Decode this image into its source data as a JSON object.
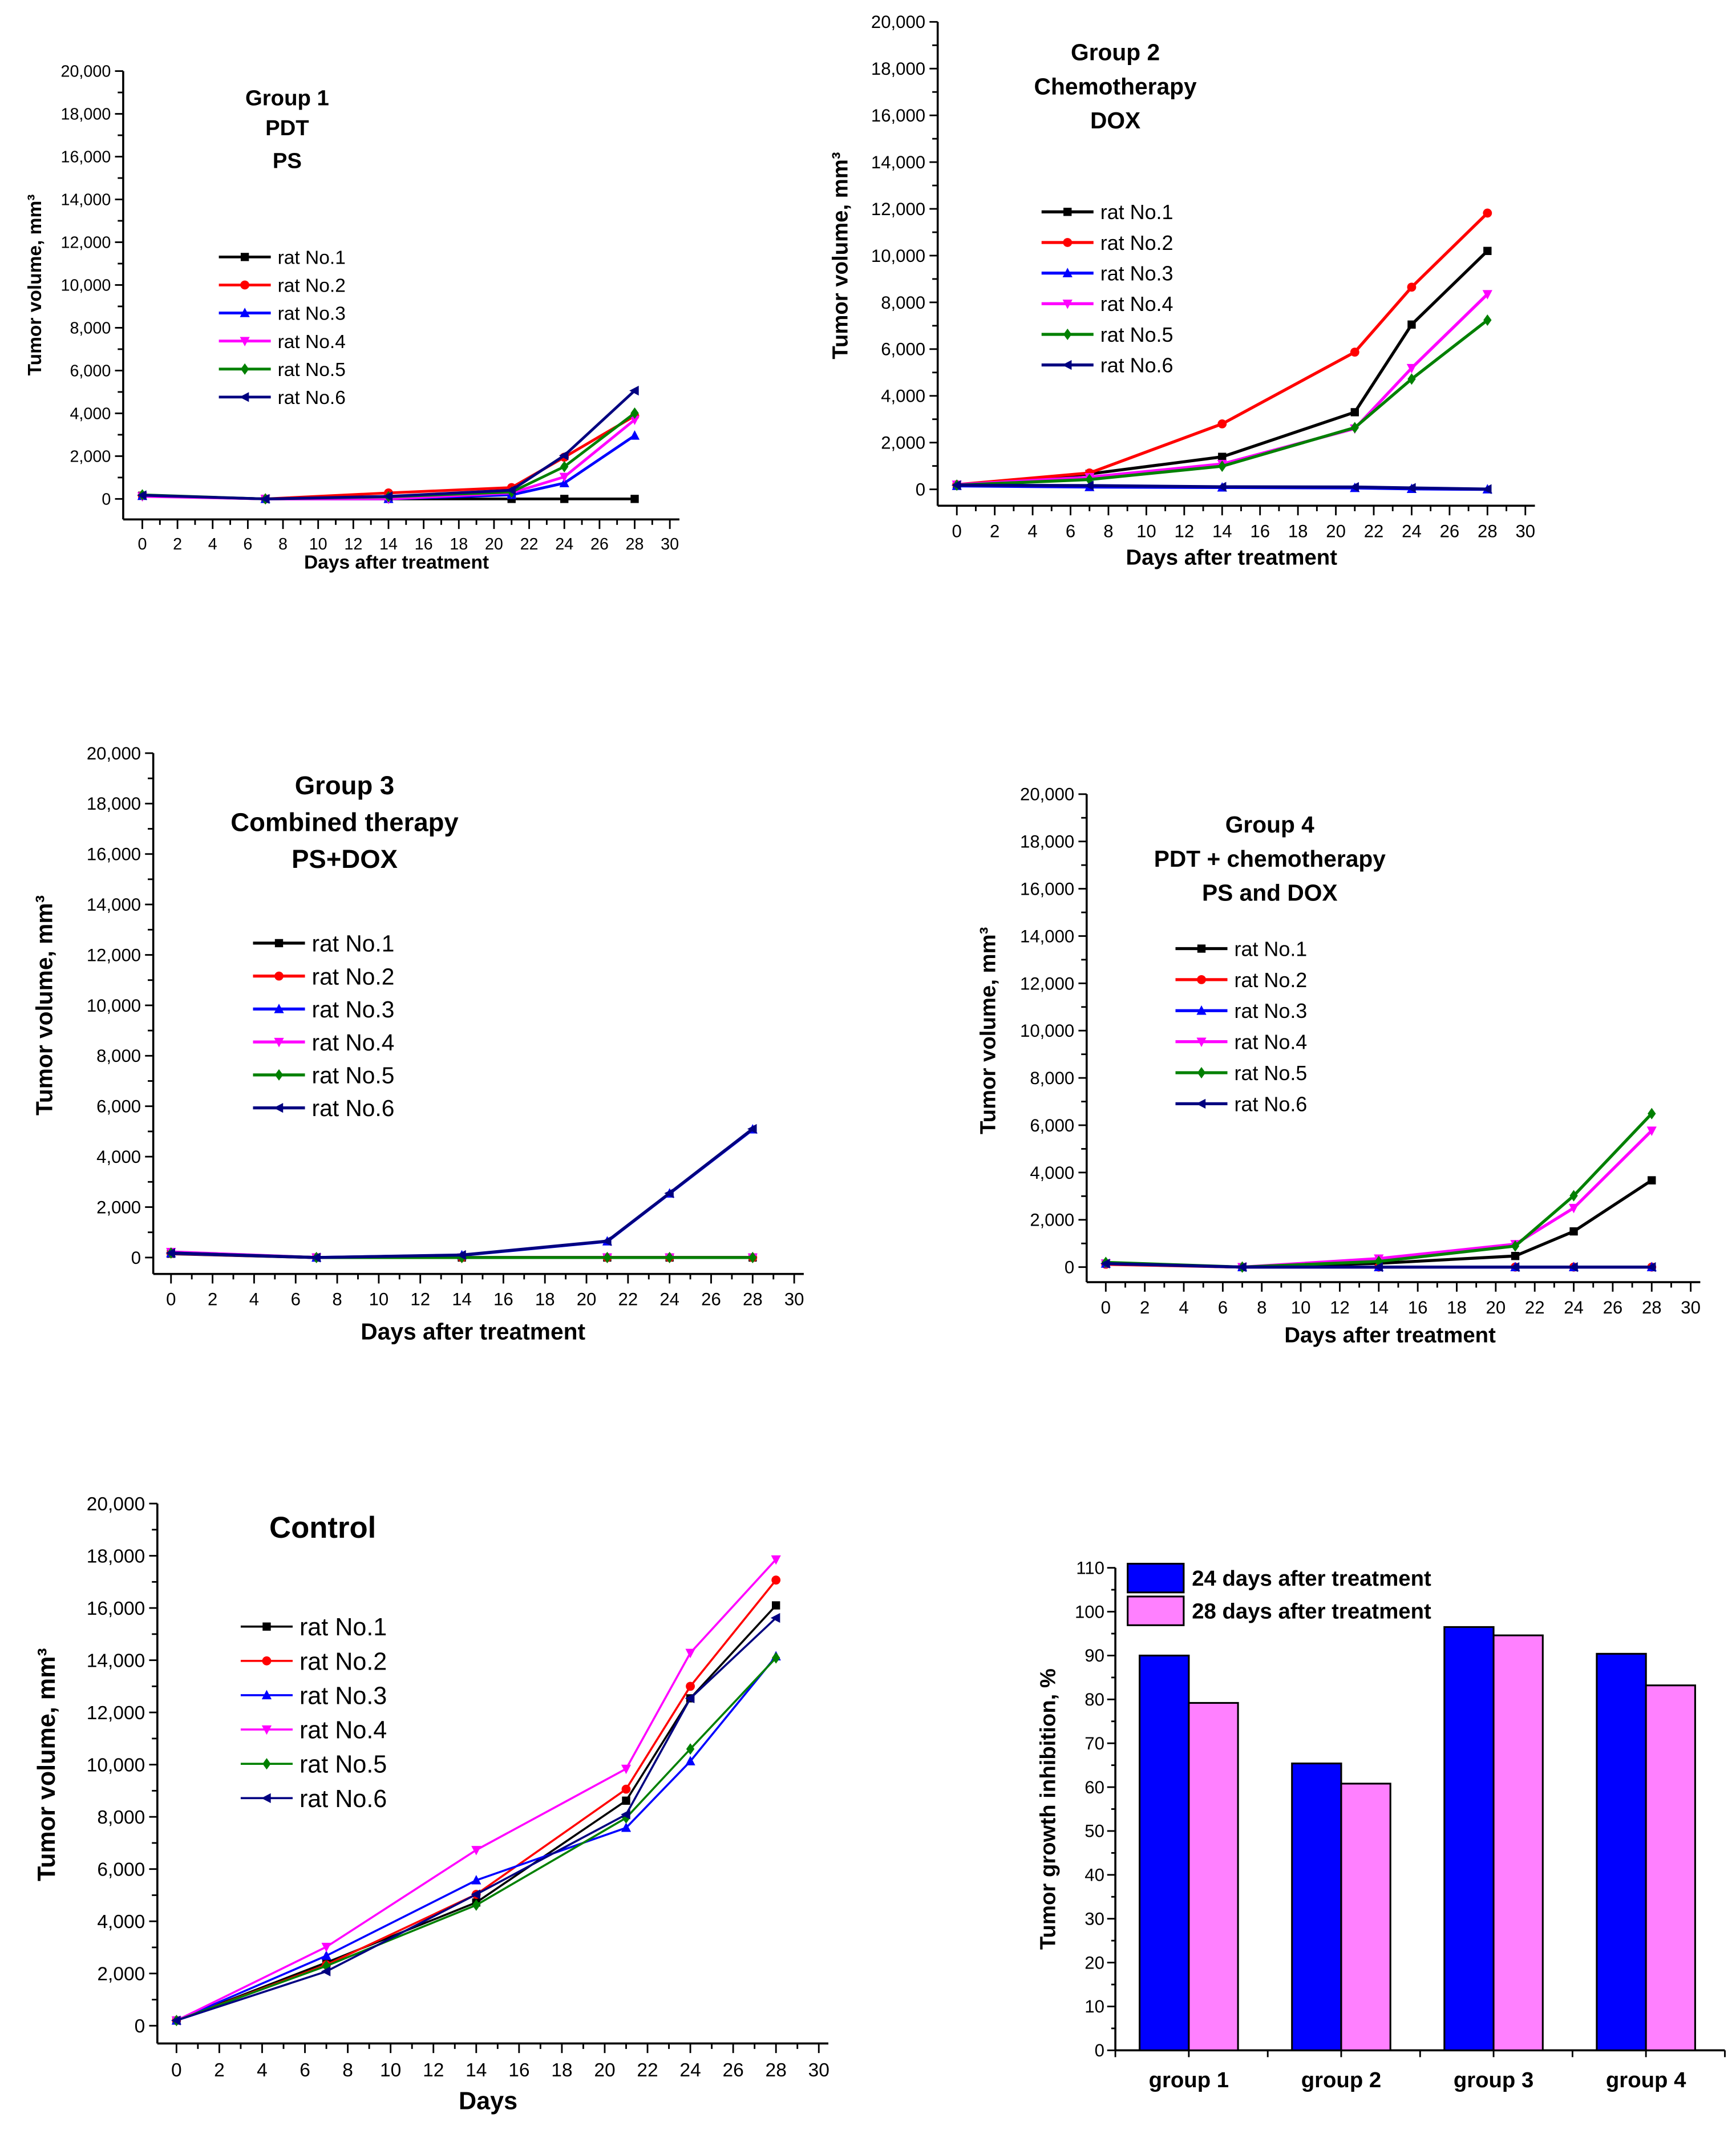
{
  "chart_data": [
    {
      "type": "line",
      "title": [
        "Group 1",
        "PDT",
        "PS"
      ],
      "xlabel": "Days after treatment",
      "ylabel": "Tumor volume, mm³",
      "xlim": [
        0,
        30
      ],
      "ylim": [
        0,
        20000
      ],
      "x": [
        0,
        7,
        14,
        21,
        24,
        28
      ],
      "series": [
        {
          "name": "rat No.1",
          "color": "#000000",
          "marker": "square",
          "values": [
            150,
            0,
            0,
            0,
            0,
            0
          ]
        },
        {
          "name": "rat No.2",
          "color": "#ff0000",
          "marker": "circle",
          "values": [
            160,
            0,
            280,
            530,
            1950,
            3880
          ]
        },
        {
          "name": "rat No.3",
          "color": "#0000ff",
          "marker": "triangle-up",
          "values": [
            140,
            0,
            0,
            190,
            740,
            2960
          ]
        },
        {
          "name": "rat No.4",
          "color": "#ff00ff",
          "marker": "triangle-down",
          "values": [
            120,
            0,
            0,
            280,
            1030,
            3700
          ]
        },
        {
          "name": "rat No.5",
          "color": "#008000",
          "marker": "diamond",
          "values": [
            190,
            0,
            100,
            320,
            1510,
            4010
          ]
        },
        {
          "name": "rat No.6",
          "color": "#000080",
          "marker": "triangle-left",
          "values": [
            170,
            0,
            120,
            410,
            2030,
            5060
          ]
        }
      ],
      "legend": "upper-left"
    },
    {
      "type": "line",
      "title": [
        "Group 2",
        "Chemotherapy",
        "DOX"
      ],
      "xlabel": "Days after treatment",
      "ylabel": "Tumor volume, mm³",
      "xlim": [
        0,
        30
      ],
      "ylim": [
        0,
        20000
      ],
      "x": [
        0,
        7,
        14,
        21,
        24,
        28
      ],
      "series": [
        {
          "name": "rat No.1",
          "color": "#000000",
          "marker": "square",
          "values": [
            150,
            660,
            1390,
            3300,
            7050,
            10200
          ]
        },
        {
          "name": "rat No.2",
          "color": "#ff0000",
          "marker": "circle",
          "values": [
            200,
            700,
            2800,
            5870,
            8650,
            11820
          ]
        },
        {
          "name": "rat No.3",
          "color": "#0000ff",
          "marker": "triangle-up",
          "values": [
            150,
            100,
            80,
            60,
            20,
            0
          ]
        },
        {
          "name": "rat No.4",
          "color": "#ff00ff",
          "marker": "triangle-down",
          "values": [
            200,
            520,
            1085,
            2600,
            5190,
            8350
          ]
        },
        {
          "name": "rat No.5",
          "color": "#008000",
          "marker": "diamond",
          "values": [
            180,
            420,
            990,
            2640,
            4720,
            7240
          ]
        },
        {
          "name": "rat No.6",
          "color": "#000080",
          "marker": "triangle-left",
          "values": [
            180,
            160,
            110,
            100,
            60,
            10
          ]
        }
      ],
      "legend": "upper-left"
    },
    {
      "type": "line",
      "title": [
        "Group 3",
        "Combined therapy",
        "PS+DOX"
      ],
      "xlabel": "Days after treatment",
      "ylabel": "Tumor volume, mm³",
      "xlim": [
        0,
        30
      ],
      "ylim": [
        0,
        20000
      ],
      "x": [
        0,
        7,
        14,
        21,
        24,
        28
      ],
      "series": [
        {
          "name": "rat No.1",
          "color": "#000000",
          "marker": "square",
          "values": [
            150,
            0,
            0,
            0,
            0,
            0
          ]
        },
        {
          "name": "rat No.2",
          "color": "#ff0000",
          "marker": "circle",
          "values": [
            160,
            0,
            0,
            0,
            0,
            0
          ]
        },
        {
          "name": "rat No.3",
          "color": "#0000ff",
          "marker": "triangle-up",
          "values": [
            170,
            0,
            90,
            640,
            2540,
            5080
          ]
        },
        {
          "name": "rat No.4",
          "color": "#ff00ff",
          "marker": "triangle-down",
          "values": [
            220,
            0,
            0,
            0,
            0,
            0
          ]
        },
        {
          "name": "rat No.5",
          "color": "#008000",
          "marker": "diamond",
          "values": [
            180,
            0,
            0,
            0,
            0,
            0
          ]
        },
        {
          "name": "rat No.6",
          "color": "#000080",
          "marker": "triangle-left",
          "values": [
            180,
            0,
            100,
            650,
            2550,
            5100
          ]
        }
      ],
      "legend": "upper-left"
    },
    {
      "type": "line",
      "title": [
        "Group 4",
        "PDT + chemotherapy",
        "PS and DOX"
      ],
      "xlabel": "Days after treatment",
      "ylabel": "Tumor volume, mm³",
      "xlim": [
        0,
        30
      ],
      "ylim": [
        0,
        20000
      ],
      "x": [
        0,
        7,
        14,
        21,
        24,
        28
      ],
      "series": [
        {
          "name": "rat No.1",
          "color": "#000000",
          "marker": "square",
          "values": [
            150,
            0,
            160,
            470,
            1510,
            3670
          ]
        },
        {
          "name": "rat No.2",
          "color": "#ff0000",
          "marker": "circle",
          "values": [
            120,
            0,
            0,
            0,
            0,
            0
          ]
        },
        {
          "name": "rat No.3",
          "color": "#0000ff",
          "marker": "triangle-up",
          "values": [
            150,
            0,
            0,
            0,
            0,
            0
          ]
        },
        {
          "name": "rat No.4",
          "color": "#ff00ff",
          "marker": "triangle-down",
          "values": [
            150,
            0,
            360,
            970,
            2500,
            5770
          ]
        },
        {
          "name": "rat No.5",
          "color": "#008000",
          "marker": "diamond",
          "values": [
            200,
            0,
            240,
            890,
            3020,
            6490
          ]
        },
        {
          "name": "rat No.6",
          "color": "#000080",
          "marker": "triangle-left",
          "values": [
            150,
            0,
            0,
            0,
            0,
            0
          ]
        }
      ],
      "legend": "upper-left"
    },
    {
      "type": "line",
      "title": [
        "Control"
      ],
      "xlabel": "Days",
      "ylabel": "Tumor volume, mm³",
      "xlim": [
        0,
        30
      ],
      "ylim": [
        0,
        20000
      ],
      "x": [
        0,
        7,
        14,
        21,
        24,
        28
      ],
      "series": [
        {
          "name": "rat No.1",
          "color": "#000000",
          "marker": "square",
          "values": [
            200,
            2420,
            4720,
            8620,
            12540,
            16100
          ]
        },
        {
          "name": "rat No.2",
          "color": "#ff0000",
          "marker": "circle",
          "values": [
            200,
            2330,
            5030,
            9060,
            13000,
            17070
          ]
        },
        {
          "name": "rat No.3",
          "color": "#0000ff",
          "marker": "triangle-up",
          "values": [
            200,
            2680,
            5570,
            7580,
            10130,
            14150
          ]
        },
        {
          "name": "rat No.4",
          "color": "#ff00ff",
          "marker": "triangle-down",
          "values": [
            200,
            3020,
            6730,
            9840,
            14280,
            17860
          ]
        },
        {
          "name": "rat No.5",
          "color": "#008000",
          "marker": "diamond",
          "values": [
            200,
            2290,
            4620,
            7960,
            10600,
            14090
          ]
        },
        {
          "name": "rat No.6",
          "color": "#000080",
          "marker": "triangle-left",
          "values": [
            200,
            2080,
            5030,
            8090,
            12540,
            15620
          ]
        }
      ],
      "legend": "upper-left"
    },
    {
      "type": "bar",
      "title": "",
      "xlabel": "",
      "ylabel": "Tumor growth inhibition, %",
      "ylim": [
        0,
        110
      ],
      "categories": [
        "group 1",
        "group 2",
        "group 3",
        "group 4"
      ],
      "series": [
        {
          "name": "24 days after treatment",
          "color": "#0000ff",
          "values": [
            90.0,
            65.4,
            96.5,
            90.4
          ]
        },
        {
          "name": "28 days after treatment",
          "color": "#ff80ff",
          "values": [
            79.2,
            60.8,
            94.6,
            83.2
          ]
        }
      ],
      "legend": "top-left"
    }
  ]
}
